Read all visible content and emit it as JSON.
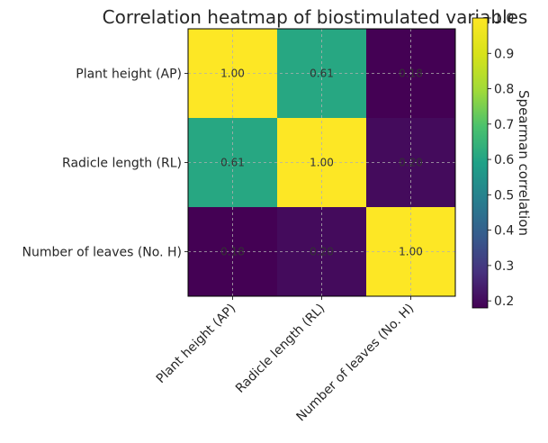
{
  "chart_data": {
    "type": "heatmap",
    "title": "Correlation heatmap of biostimulated variables",
    "row_labels": [
      "Plant height (AP)",
      "Radicle length (RL)",
      "Number of leaves (No. H)"
    ],
    "col_labels": [
      "Plant height (AP)",
      "Radicle length (RL)",
      "Number of leaves (No. H)"
    ],
    "values": [
      [
        1.0,
        0.61,
        0.18
      ],
      [
        0.61,
        1.0,
        0.2
      ],
      [
        0.18,
        0.2,
        1.0
      ]
    ],
    "cell_labels": [
      [
        "1.00",
        "0.61",
        "0.18"
      ],
      [
        "0.61",
        "1.00",
        "0.20"
      ],
      [
        "0.18",
        "0.20",
        "1.00"
      ]
    ],
    "colormap": "viridis",
    "colorbar": {
      "label": "Spearman correlation",
      "range": [
        0.18,
        1.0
      ],
      "ticks": [
        "0.2",
        "0.3",
        "0.4",
        "0.5",
        "0.6",
        "0.7",
        "0.8",
        "0.9",
        "1.0"
      ]
    },
    "grid": true
  }
}
